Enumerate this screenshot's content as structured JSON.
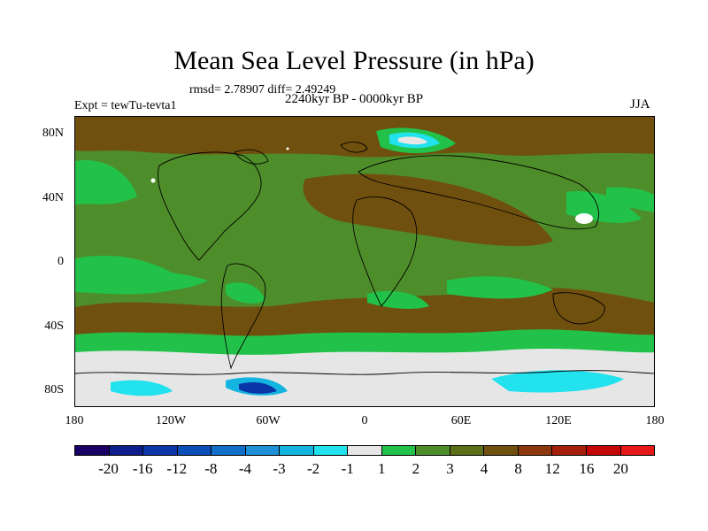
{
  "title": "Mean Sea Level Pressure (in hPa)",
  "stats": "rmsd= 2.78907 diff= 2.49249",
  "experiment": "Expt = tewTu-tevta1",
  "period": "2240kyr BP - 0000kyr BP",
  "season": "JJA",
  "lat_labels": [
    "80N",
    "40N",
    "0",
    "40S",
    "80S"
  ],
  "lon_labels": [
    "180",
    "120W",
    "60W",
    "0",
    "60E",
    "120E",
    "180"
  ],
  "colorbar": {
    "labels": [
      "-20",
      "-16",
      "-12",
      "-8",
      "-4",
      "-3",
      "-2",
      "-1",
      "1",
      "2",
      "3",
      "4",
      "8",
      "12",
      "16",
      "20"
    ],
    "colors": [
      "#1a0066",
      "#0d1e8c",
      "#0b36a8",
      "#0a4fb8",
      "#0f6fc9",
      "#1e90d8",
      "#14b4e0",
      "#22e2ee",
      "#e6e6e6",
      "#22c24a",
      "#4e8e2a",
      "#5b6e18",
      "#70500e",
      "#8c380c",
      "#a4200a",
      "#c40606",
      "#e61818"
    ]
  },
  "colors": {
    "land_contour": "#000000",
    "field_low": "#22c24a",
    "field_mid": "#4e8e2a",
    "field_high": "#70500e",
    "field_zero": "#e6e6e6",
    "field_neg": "#22e2ee"
  }
}
